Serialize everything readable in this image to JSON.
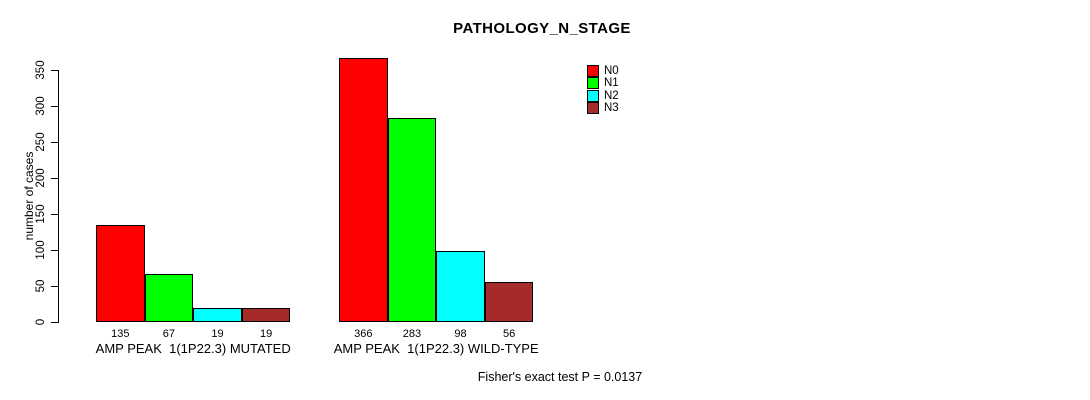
{
  "title": "PATHOLOGY_N_STAGE",
  "footer": "Fisher's exact test P = 0.0137",
  "chart_data": {
    "type": "bar",
    "title": "PATHOLOGY_N_STAGE",
    "xlabel": "",
    "ylabel": "number of cases",
    "ylim": [
      0,
      350
    ],
    "yticks": [
      0,
      50,
      100,
      150,
      200,
      250,
      300,
      350
    ],
    "grid": false,
    "series_labels": [
      "N0",
      "N1",
      "N2",
      "N3"
    ],
    "colors": [
      "#FF0000",
      "#00FF00",
      "#00FFFF",
      "#A52A2A"
    ],
    "groups": [
      {
        "label": "AMP PEAK  1(1P22.3) MUTATED",
        "values": [
          135,
          67,
          19,
          19
        ]
      },
      {
        "label": "AMP PEAK  1(1P22.3) WILD-TYPE",
        "values": [
          366,
          283,
          98,
          56
        ]
      }
    ],
    "legend": {
      "position": "top-right",
      "entries": [
        {
          "label": "N0",
          "color": "#FF0000"
        },
        {
          "label": "N1",
          "color": "#00FF00"
        },
        {
          "label": "N2",
          "color": "#00FFFF"
        },
        {
          "label": "N3",
          "color": "#A52A2A"
        }
      ]
    },
    "annotation": "Fisher's exact test P = 0.0137"
  }
}
